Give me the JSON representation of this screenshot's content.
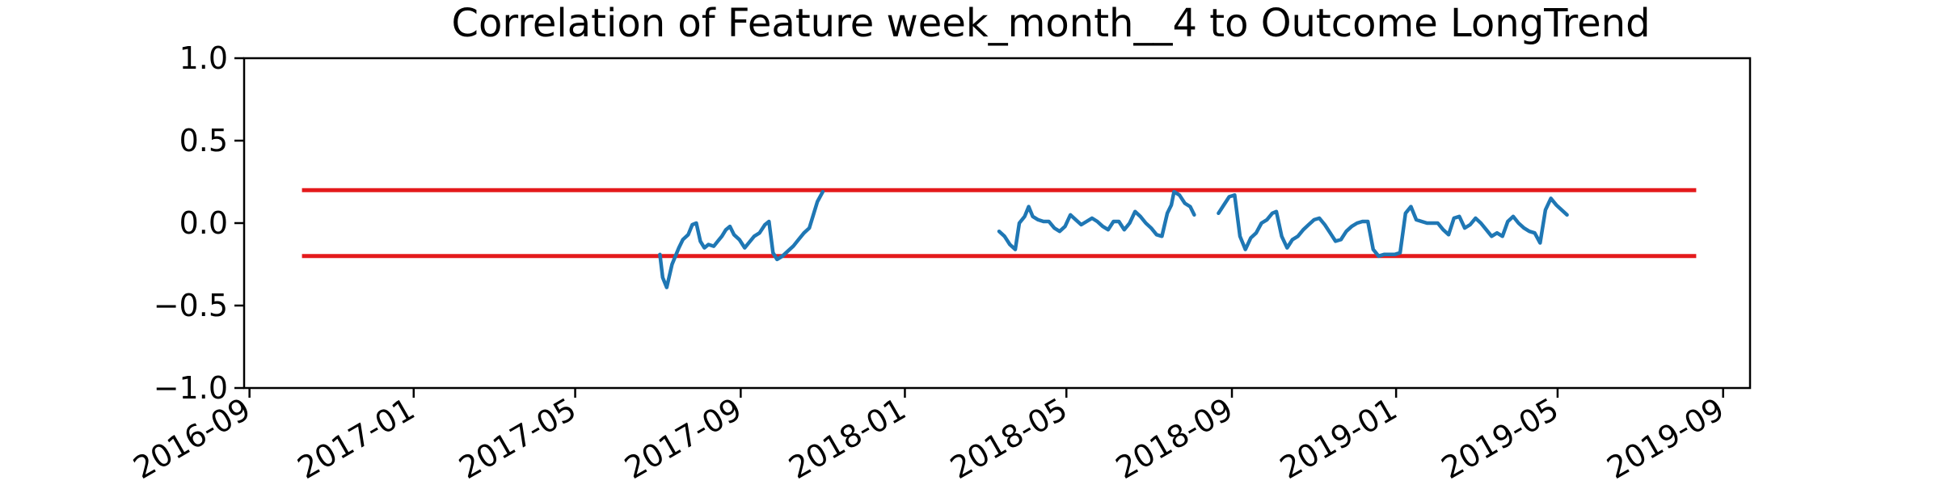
{
  "chart_data": {
    "type": "line",
    "title": "Correlation of Feature week_month__4 to Outcome LongTrend",
    "xlabel": "",
    "ylabel": "",
    "xlim": [
      "2016-08-28",
      "2019-09-21"
    ],
    "ylim": [
      -1.0,
      1.0
    ],
    "x_ticks": [
      "2016-09",
      "2017-01",
      "2017-05",
      "2017-09",
      "2018-01",
      "2018-05",
      "2018-09",
      "2019-01",
      "2019-05",
      "2019-09"
    ],
    "y_ticks": [
      "1.0",
      "0.5",
      "0.0",
      "−0.5",
      "−1.0"
    ],
    "grid": false,
    "legend": "none",
    "threshold_lines": [
      {
        "y": 0.2,
        "x_start": "2016-10-10",
        "x_end": "2019-08-12",
        "color": "#e41a1c"
      },
      {
        "y": -0.2,
        "x_start": "2016-10-10",
        "x_end": "2019-08-12",
        "color": "#e41a1c"
      }
    ],
    "series": [
      {
        "color": "#1f77b4",
        "segments": [
          [
            [
              "2017-07-03",
              -0.19
            ],
            [
              "2017-07-05",
              -0.33
            ],
            [
              "2017-07-08",
              -0.39
            ],
            [
              "2017-07-12",
              -0.25
            ],
            [
              "2017-07-17",
              -0.15
            ],
            [
              "2017-07-20",
              -0.1
            ],
            [
              "2017-07-24",
              -0.07
            ],
            [
              "2017-07-27",
              -0.01
            ],
            [
              "2017-07-30",
              0.0
            ],
            [
              "2017-08-02",
              -0.11
            ],
            [
              "2017-08-05",
              -0.15
            ],
            [
              "2017-08-08",
              -0.13
            ],
            [
              "2017-08-12",
              -0.14
            ],
            [
              "2017-08-15",
              -0.11
            ],
            [
              "2017-08-18",
              -0.08
            ],
            [
              "2017-08-21",
              -0.04
            ],
            [
              "2017-08-24",
              -0.02
            ],
            [
              "2017-08-27",
              -0.07
            ],
            [
              "2017-08-31",
              -0.1
            ],
            [
              "2017-09-04",
              -0.15
            ],
            [
              "2017-09-07",
              -0.12
            ],
            [
              "2017-09-11",
              -0.08
            ],
            [
              "2017-09-15",
              -0.06
            ],
            [
              "2017-09-19",
              -0.01
            ],
            [
              "2017-09-22",
              0.01
            ],
            [
              "2017-09-25",
              -0.18
            ],
            [
              "2017-09-28",
              -0.22
            ],
            [
              "2017-10-02",
              -0.2
            ],
            [
              "2017-10-06",
              -0.17
            ],
            [
              "2017-10-10",
              -0.14
            ],
            [
              "2017-10-14",
              -0.1
            ],
            [
              "2017-10-18",
              -0.06
            ],
            [
              "2017-10-22",
              -0.03
            ],
            [
              "2017-10-25",
              0.05
            ],
            [
              "2017-10-28",
              0.13
            ],
            [
              "2017-11-01",
              0.19
            ]
          ],
          [
            [
              "2018-03-12",
              -0.05
            ],
            [
              "2018-03-16",
              -0.08
            ],
            [
              "2018-03-20",
              -0.13
            ],
            [
              "2018-03-24",
              -0.16
            ],
            [
              "2018-03-27",
              0.0
            ],
            [
              "2018-03-31",
              0.04
            ],
            [
              "2018-04-03",
              0.1
            ],
            [
              "2018-04-06",
              0.04
            ],
            [
              "2018-04-10",
              0.02
            ],
            [
              "2018-04-14",
              0.01
            ],
            [
              "2018-04-18",
              0.01
            ],
            [
              "2018-04-22",
              -0.03
            ],
            [
              "2018-04-26",
              -0.05
            ],
            [
              "2018-04-30",
              -0.02
            ],
            [
              "2018-05-04",
              0.05
            ],
            [
              "2018-05-08",
              0.02
            ],
            [
              "2018-05-12",
              -0.01
            ],
            [
              "2018-05-16",
              0.01
            ],
            [
              "2018-05-20",
              0.03
            ],
            [
              "2018-05-24",
              0.01
            ],
            [
              "2018-05-28",
              -0.02
            ],
            [
              "2018-06-01",
              -0.04
            ],
            [
              "2018-06-05",
              0.01
            ],
            [
              "2018-06-09",
              0.01
            ],
            [
              "2018-06-13",
              -0.04
            ],
            [
              "2018-06-17",
              0.0
            ],
            [
              "2018-06-21",
              0.07
            ],
            [
              "2018-06-25",
              0.04
            ],
            [
              "2018-06-29",
              0.0
            ],
            [
              "2018-07-03",
              -0.03
            ],
            [
              "2018-07-07",
              -0.07
            ],
            [
              "2018-07-11",
              -0.08
            ],
            [
              "2018-07-15",
              0.06
            ],
            [
              "2018-07-18",
              0.11
            ],
            [
              "2018-07-20",
              0.19
            ],
            [
              "2018-07-24",
              0.17
            ],
            [
              "2018-07-28",
              0.12
            ],
            [
              "2018-08-01",
              0.1
            ],
            [
              "2018-08-04",
              0.05
            ]
          ],
          [
            [
              "2018-08-22",
              0.06
            ],
            [
              "2018-08-26",
              0.11
            ],
            [
              "2018-08-30",
              0.16
            ],
            [
              "2018-09-03",
              0.17
            ],
            [
              "2018-09-07",
              -0.08
            ],
            [
              "2018-09-11",
              -0.16
            ],
            [
              "2018-09-15",
              -0.09
            ],
            [
              "2018-09-19",
              -0.06
            ],
            [
              "2018-09-23",
              0.0
            ],
            [
              "2018-09-27",
              0.02
            ],
            [
              "2018-10-01",
              0.06
            ],
            [
              "2018-10-04",
              0.07
            ],
            [
              "2018-10-08",
              -0.08
            ],
            [
              "2018-10-12",
              -0.15
            ],
            [
              "2018-10-16",
              -0.1
            ],
            [
              "2018-10-20",
              -0.08
            ],
            [
              "2018-10-24",
              -0.04
            ],
            [
              "2018-10-28",
              -0.01
            ],
            [
              "2018-11-01",
              0.02
            ],
            [
              "2018-11-05",
              0.03
            ],
            [
              "2018-11-09",
              -0.01
            ],
            [
              "2018-11-13",
              -0.06
            ],
            [
              "2018-11-17",
              -0.11
            ],
            [
              "2018-11-21",
              -0.1
            ],
            [
              "2018-11-25",
              -0.05
            ],
            [
              "2018-11-29",
              -0.02
            ],
            [
              "2018-12-03",
              0.0
            ],
            [
              "2018-12-07",
              0.01
            ],
            [
              "2018-12-11",
              0.01
            ],
            [
              "2018-12-15",
              -0.16
            ],
            [
              "2018-12-19",
              -0.2
            ],
            [
              "2018-12-23",
              -0.19
            ],
            [
              "2018-12-27",
              -0.19
            ],
            [
              "2018-12-31",
              -0.19
            ],
            [
              "2019-01-04",
              -0.18
            ],
            [
              "2019-01-08",
              0.06
            ],
            [
              "2019-01-12",
              0.1
            ],
            [
              "2019-01-16",
              0.02
            ],
            [
              "2019-01-20",
              0.01
            ],
            [
              "2019-01-24",
              0.0
            ],
            [
              "2019-01-28",
              0.0
            ],
            [
              "2019-02-01",
              0.0
            ],
            [
              "2019-02-05",
              -0.04
            ],
            [
              "2019-02-09",
              -0.07
            ],
            [
              "2019-02-13",
              0.03
            ],
            [
              "2019-02-17",
              0.04
            ],
            [
              "2019-02-21",
              -0.03
            ],
            [
              "2019-02-25",
              -0.01
            ],
            [
              "2019-03-01",
              0.03
            ],
            [
              "2019-03-05",
              0.0
            ],
            [
              "2019-03-09",
              -0.04
            ],
            [
              "2019-03-13",
              -0.08
            ],
            [
              "2019-03-17",
              -0.06
            ],
            [
              "2019-03-21",
              -0.08
            ],
            [
              "2019-03-25",
              0.01
            ],
            [
              "2019-03-29",
              0.04
            ],
            [
              "2019-04-02",
              0.0
            ],
            [
              "2019-04-06",
              -0.03
            ],
            [
              "2019-04-10",
              -0.05
            ],
            [
              "2019-04-14",
              -0.06
            ],
            [
              "2019-04-18",
              -0.12
            ],
            [
              "2019-04-22",
              0.08
            ],
            [
              "2019-04-26",
              0.15
            ],
            [
              "2019-04-30",
              0.11
            ],
            [
              "2019-05-04",
              0.08
            ],
            [
              "2019-05-08",
              0.05
            ]
          ]
        ]
      }
    ]
  }
}
